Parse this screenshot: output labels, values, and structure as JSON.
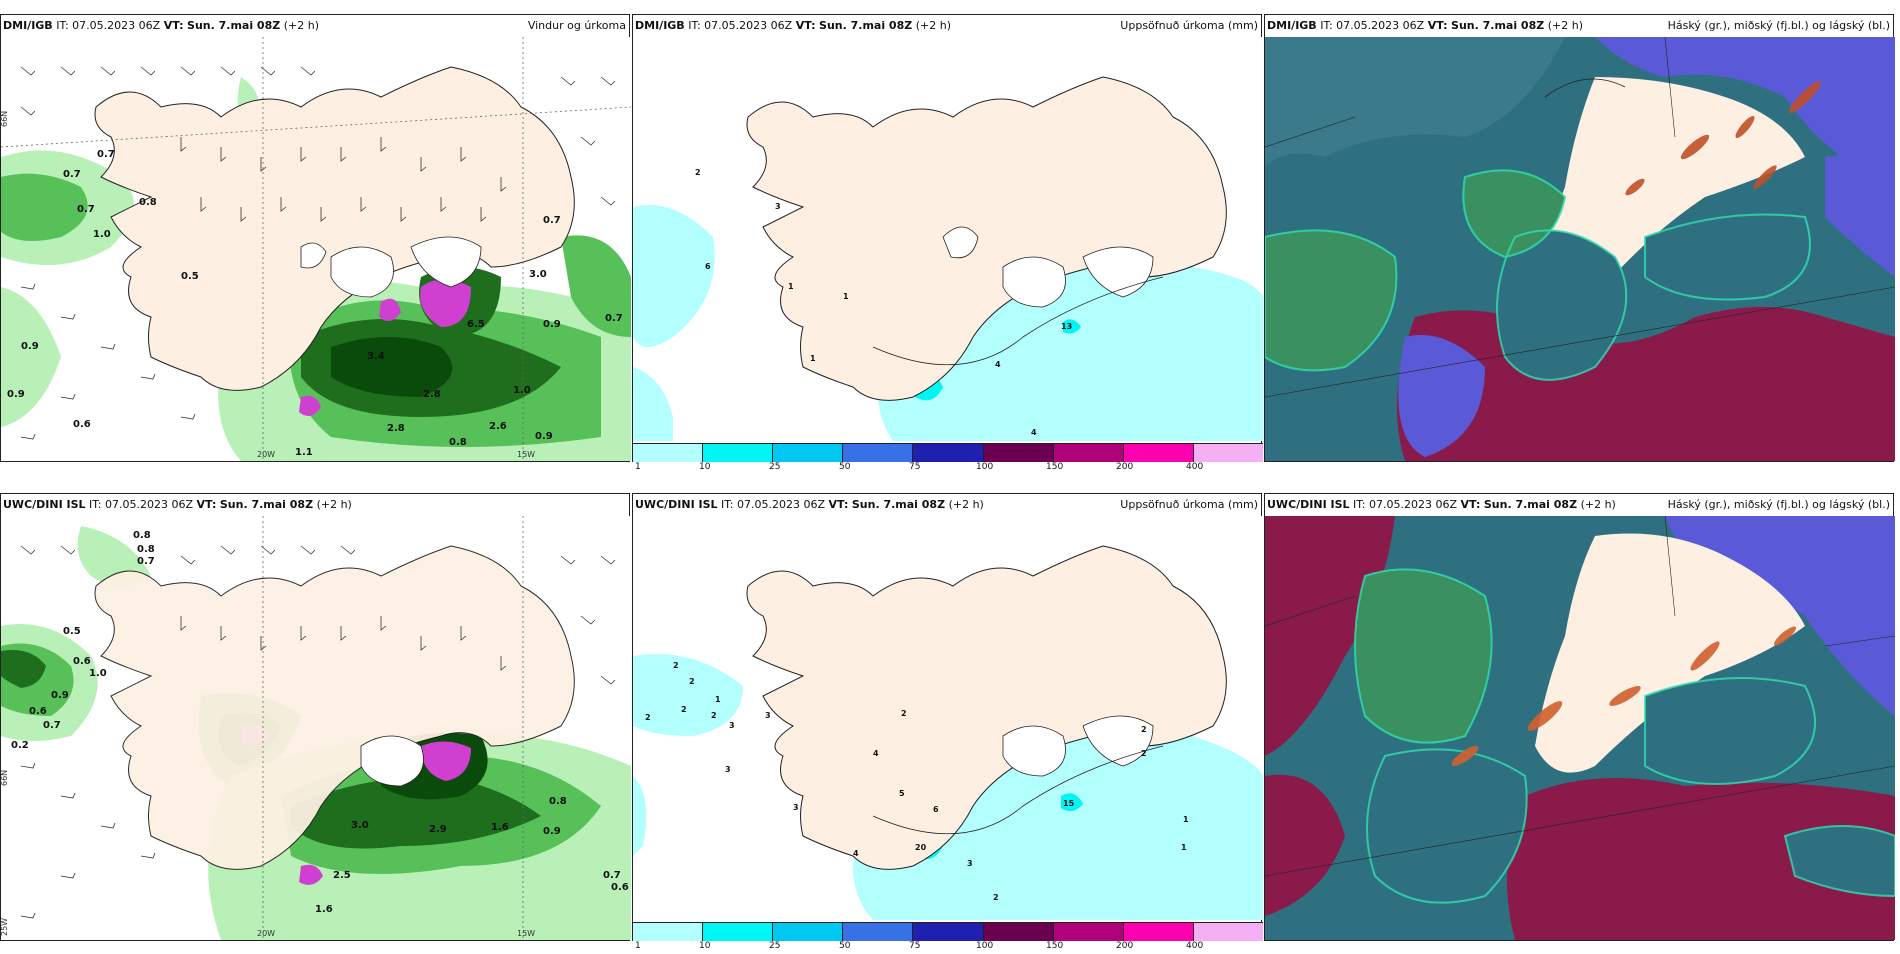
{
  "panels": [
    {
      "model": "DMI/IGB",
      "it_label": "IT:",
      "it": "07.05.2023 06Z",
      "vt_label": "VT:",
      "vt": "Sun. 7.mai 08Z",
      "lead": "(+2 h)",
      "product": "Vindur og úrkoma",
      "type": "wind"
    },
    {
      "model": "DMI/IGB",
      "it_label": "IT:",
      "it": "07.05.2023 06Z",
      "vt_label": "VT:",
      "vt": "Sun. 7.mai 08Z",
      "lead": "(+2 h)",
      "product": "Uppsöfnuð úrkoma (mm)",
      "type": "accum"
    },
    {
      "model": "DMI/IGB",
      "it_label": "IT:",
      "it": "07.05.2023 06Z",
      "vt_label": "VT:",
      "vt": "Sun. 7.mai 08Z",
      "lead": "(+2 h)",
      "product": "Háský (gr.), miðský (fj.bl.) og lágský (bl.)",
      "type": "cloud"
    },
    {
      "model": "UWC/DINI ISL",
      "it_label": "IT:",
      "it": "07.05.2023 06Z",
      "vt_label": "VT:",
      "vt": "Sun. 7.mai 08Z",
      "lead": "(+2 h)",
      "product": "",
      "type": "wind"
    },
    {
      "model": "UWC/DINI ISL",
      "it_label": "IT:",
      "it": "07.05.2023 06Z",
      "vt_label": "VT:",
      "vt": "Sun. 7.mai 08Z",
      "lead": "(+2 h)",
      "product": "Uppsöfnuð úrkoma (mm)",
      "type": "accum"
    },
    {
      "model": "UWC/DINI ISL",
      "it_label": "IT:",
      "it": "07.05.2023 06Z",
      "vt_label": "VT:",
      "vt": "Sun. 7.mai 08Z",
      "lead": "(+2 h)",
      "product": "Háský (gr.), miðský (fj.bl.) og lágský (bl.)",
      "type": "cloud"
    }
  ],
  "grid_labels": {
    "lat_66": "66N",
    "lon_20": "20W",
    "lon_15": "15W",
    "lon_25": "25W"
  },
  "precip_colorbar": {
    "levels": [
      "1",
      "10",
      "25",
      "50",
      "75",
      "100",
      "150",
      "200",
      "400"
    ],
    "colors": [
      "#b3ffff",
      "#00f5f5",
      "#00c8f0",
      "#3870e8",
      "#2020b0",
      "#6b0050",
      "#b0007a",
      "#ff00b0",
      "#f5b0f5"
    ]
  },
  "wind_precip_labels_top": [
    "0.7",
    "0.7",
    "0.7",
    "0.8",
    "1.0",
    "0.5",
    "0.7",
    "3.0",
    "0.7",
    "0.9",
    "3.4",
    "6.5",
    "0.9",
    "1.0",
    "2.8",
    "0.6",
    "2.8",
    "0.8",
    "2.6",
    "0.9",
    "1.1",
    "0.9"
  ],
  "wind_precip_labels_bottom": [
    "0.8",
    "0.8",
    "0.7",
    "0.5",
    "0.6",
    "1.0",
    "0.9",
    "0.6",
    "0.7",
    "0.2",
    "3.0",
    "2.9",
    "2.5",
    "1.6",
    "0.9",
    "0.7",
    "0.6",
    "0.8",
    "1.6"
  ],
  "accum_labels_top": [
    "2",
    "3",
    "6",
    "1",
    "1",
    "1",
    "4",
    "13",
    "4"
  ],
  "accum_labels_bottom": [
    "2",
    "2",
    "2",
    "2",
    "1",
    "2",
    "3",
    "3",
    "4",
    "2",
    "3",
    "3",
    "5",
    "6",
    "4",
    "20",
    "3",
    "2",
    "1",
    "1",
    "15",
    "2",
    "2"
  ],
  "colors": {
    "land": "#fdf0e3",
    "coast": "#222222",
    "light_green": "#b8f0b8",
    "mid_green": "#58c058",
    "dark_green": "#1e6e1e",
    "darkest_green": "#0a4a0a",
    "magenta": "#d040d0",
    "accum_light": "#b3ffff",
    "cloud_blue": "#5a5ad8",
    "cloud_teal": "#2f7080",
    "cloud_green": "#3a9060",
    "cloud_maroon": "#8a1a4a",
    "cloud_cyan": "#30e0b0"
  }
}
